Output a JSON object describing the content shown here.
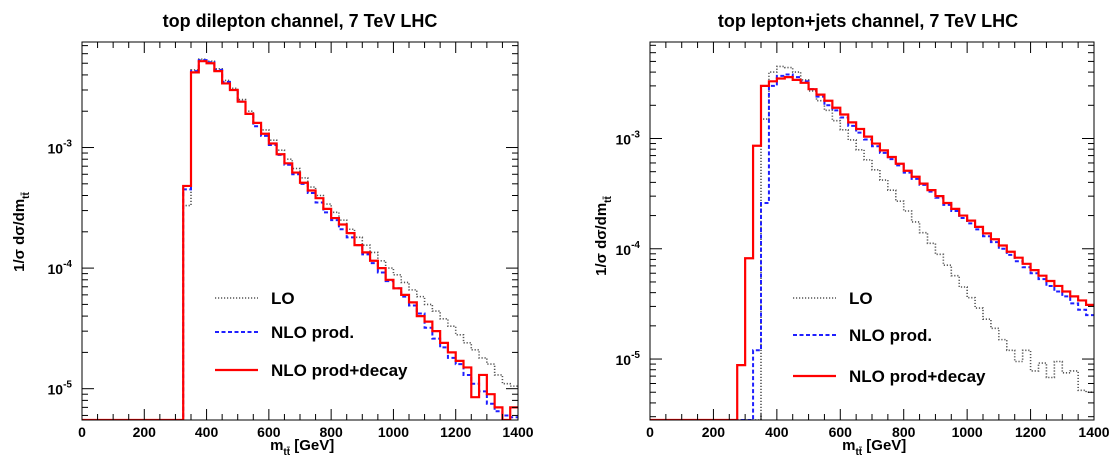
{
  "chart_data": [
    {
      "type": "line",
      "title": "top dilepton channel, 7 TeV LHC",
      "xlabel": "m_tt̄ [GeV]",
      "xlabel_main": "m",
      "xlabel_sub": "tt̄",
      "xlabel_unit": " [GeV]",
      "ylabel": "1/σ dσ/dm_tt̄",
      "ylabel_main": "1/σ dσ/dm",
      "ylabel_sub": "tt̄",
      "xlim": [
        0,
        1400
      ],
      "ylim": [
        5.5e-06,
        0.0075
      ],
      "yscale": "log",
      "bin_width": 25,
      "x_ticks": [
        0,
        200,
        400,
        600,
        800,
        1000,
        1200,
        1400
      ],
      "y_ticks": [
        {
          "value": 1e-05,
          "base": "10",
          "exp": "-5"
        },
        {
          "value": 0.0001,
          "base": "10",
          "exp": "-4"
        },
        {
          "value": 0.001,
          "base": "10",
          "exp": "-3"
        }
      ],
      "legend_position": "lower-middle",
      "x": [
        325,
        350,
        375,
        400,
        425,
        450,
        475,
        500,
        525,
        550,
        575,
        600,
        625,
        650,
        675,
        700,
        725,
        750,
        775,
        800,
        825,
        850,
        875,
        900,
        925,
        950,
        975,
        1000,
        1025,
        1050,
        1075,
        1100,
        1125,
        1150,
        1175,
        1200,
        1225,
        1250,
        1275,
        1300,
        1325,
        1350,
        1375
      ],
      "series": [
        {
          "name": "LO",
          "color": "#555555",
          "style": "dotted",
          "values": [
            0.00033,
            0.0044,
            0.0054,
            0.0052,
            0.0045,
            0.0036,
            0.0031,
            0.0025,
            0.002,
            0.0016,
            0.0014,
            0.00115,
            0.00095,
            0.0008,
            0.00067,
            0.00056,
            0.00047,
            0.0004,
            0.00034,
            0.00029,
            0.00025,
            0.00021,
            0.00018,
            0.000155,
            0.000135,
            0.000115,
            0.0001,
            8.8e-05,
            7.6e-05,
            6.6e-05,
            5.8e-05,
            5e-05,
            4.4e-05,
            3.8e-05,
            3.3e-05,
            2.8e-05,
            2.4e-05,
            2.1e-05,
            1.8e-05,
            1.6e-05,
            1.3e-05,
            1.1e-05,
            1.05e-05
          ]
        },
        {
          "name": "NLO prod.",
          "color": "#1f1fff",
          "style": "dashed",
          "values": [
            0.00045,
            0.0043,
            0.0053,
            0.0051,
            0.0044,
            0.0035,
            0.003,
            0.0024,
            0.0019,
            0.0015,
            0.00125,
            0.00105,
            0.00087,
            0.00072,
            0.0006,
            0.0005,
            0.00042,
            0.00035,
            0.00029,
            0.00025,
            0.00021,
            0.00018,
            0.000155,
            0.00013,
            0.00011,
            9.2e-05,
            7.8e-05,
            6.8e-05,
            5.8e-05,
            4.9e-05,
            4.2e-05,
            3.2e-05,
            2.6e-05,
            2.2e-05,
            1.8e-05,
            1.6e-05,
            1.3e-05,
            1.1e-05,
            9.5e-06,
            7.5e-06,
            6.5e-06,
            6e-06,
            5.8e-06
          ]
        },
        {
          "name": "NLO prod+decay",
          "color": "#ff0000",
          "style": "solid",
          "values": [
            0.00048,
            0.0042,
            0.0052,
            0.005,
            0.0043,
            0.0034,
            0.003,
            0.0024,
            0.0019,
            0.0016,
            0.0013,
            0.00108,
            0.00088,
            0.00074,
            0.00062,
            0.00051,
            0.00044,
            0.00038,
            0.00031,
            0.00026,
            0.00023,
            0.000195,
            0.000155,
            0.000135,
            0.000115,
            0.0001,
            8e-05,
            6.8e-05,
            6e-05,
            5.2e-05,
            4e-05,
            3.6e-05,
            3e-05,
            2.4e-05,
            2e-05,
            1.7e-05,
            1.5e-05,
            8.5e-06,
            1.3e-05,
            9e-06,
            7e-06,
            5.5e-06,
            7e-06
          ]
        }
      ]
    },
    {
      "type": "line",
      "title": "top lepton+jets channel, 7 TeV LHC",
      "xlabel": "m_tt̄ [GeV]",
      "xlabel_main": "m",
      "xlabel_sub": "tt̄",
      "xlabel_unit": " [GeV]",
      "ylabel": "1/σ dσ/dm_tt̄",
      "ylabel_main": "1/σ dσ/dm",
      "ylabel_sub": "tt̄",
      "xlim": [
        0,
        1400
      ],
      "ylim": [
        2.8e-06,
        0.0075
      ],
      "yscale": "log",
      "bin_width": 25,
      "x_ticks": [
        0,
        200,
        400,
        600,
        800,
        1000,
        1200,
        1400
      ],
      "y_ticks": [
        {
          "value": 1e-05,
          "base": "10",
          "exp": "-5"
        },
        {
          "value": 0.0001,
          "base": "10",
          "exp": "-4"
        },
        {
          "value": 0.001,
          "base": "10",
          "exp": "-3"
        }
      ],
      "legend_position": "lower-middle",
      "x": [
        275,
        300,
        325,
        350,
        375,
        400,
        425,
        450,
        475,
        500,
        525,
        550,
        575,
        600,
        625,
        650,
        675,
        700,
        725,
        750,
        775,
        800,
        825,
        850,
        875,
        900,
        925,
        950,
        975,
        1000,
        1025,
        1050,
        1075,
        1100,
        1125,
        1150,
        1175,
        1200,
        1225,
        1250,
        1275,
        1300,
        1325,
        1350,
        1375
      ],
      "series": [
        {
          "name": "LO",
          "color": "#555555",
          "style": "dotted",
          "values": [
            2.8e-06,
            2.8e-06,
            2.8e-06,
            0.0015,
            0.004,
            0.0045,
            0.0044,
            0.004,
            0.0034,
            0.0027,
            0.0022,
            0.0018,
            0.00145,
            0.0012,
            0.00097,
            0.00079,
            0.00064,
            0.00052,
            0.00042,
            0.00034,
            0.00027,
            0.00022,
            0.000175,
            0.00014,
            0.000112,
            8.9e-05,
            7.1e-05,
            5.7e-05,
            4.5e-05,
            3.6e-05,
            2.9e-05,
            2.3e-05,
            1.9e-05,
            1.5e-05,
            1.2e-05,
            9.5e-06,
            1.2e-05,
            7.8e-06,
            9.2e-06,
            6.8e-06,
            9.5e-06,
            7.5e-06,
            7.8e-06,
            5.2e-06,
            5e-06
          ]
        },
        {
          "name": "NLO prod.",
          "color": "#1f1fff",
          "style": "dashed",
          "values": [
            2.8e-06,
            2.8e-06,
            1.2e-05,
            0.00026,
            0.003,
            0.0037,
            0.0038,
            0.0036,
            0.0033,
            0.0028,
            0.0024,
            0.002,
            0.0018,
            0.00155,
            0.0013,
            0.00113,
            0.00098,
            0.00085,
            0.00074,
            0.00065,
            0.00057,
            0.00049,
            0.00043,
            0.00038,
            0.00033,
            0.00029,
            0.00025,
            0.00022,
            0.00019,
            0.00017,
            0.00015,
            0.00013,
            0.000115,
            0.0001,
            8.8e-05,
            7.7e-05,
            6.8e-05,
            6e-05,
            5.3e-05,
            4.6e-05,
            4.1e-05,
            3.7e-05,
            3.2e-05,
            2.8e-05,
            2.5e-05
          ]
        },
        {
          "name": "NLO prod+decay",
          "color": "#ff0000",
          "style": "solid",
          "values": [
            8.8e-06,
            8.2e-05,
            0.00086,
            0.003,
            0.0033,
            0.0035,
            0.0036,
            0.0034,
            0.0032,
            0.0028,
            0.0025,
            0.0022,
            0.0019,
            0.00165,
            0.0014,
            0.00122,
            0.00104,
            0.0009,
            0.00078,
            0.00068,
            0.00059,
            0.00051,
            0.00045,
            0.00039,
            0.00034,
            0.0003,
            0.00026,
            0.00023,
            0.0002,
            0.00018,
            0.000158,
            0.000138,
            0.000122,
            0.000107,
            9.4e-05,
            8.3e-05,
            7.3e-05,
            6.4e-05,
            5.7e-05,
            5.1e-05,
            4.6e-05,
            4.1e-05,
            3.7e-05,
            3.4e-05,
            3.1e-05
          ]
        }
      ]
    }
  ]
}
